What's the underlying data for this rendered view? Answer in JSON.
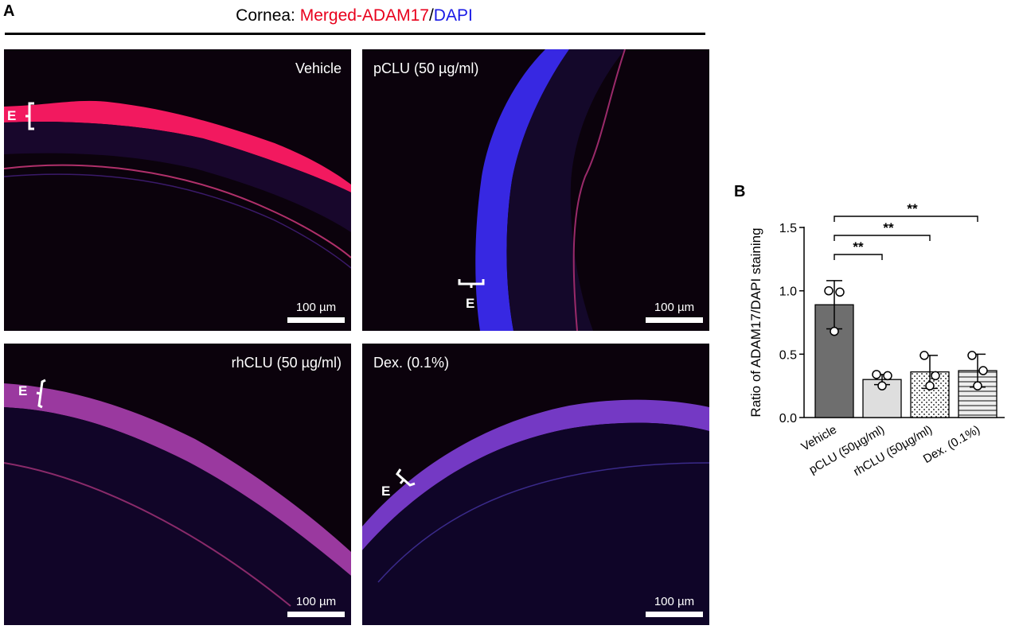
{
  "panel_a": {
    "letter": "A",
    "title_prefix": "Cornea: ",
    "title_red": "Merged-ADAM17",
    "title_sep": "/",
    "title_blue": "DAPI",
    "colors": {
      "red": "#e8001c",
      "blue": "#1a1ae6"
    },
    "images": [
      {
        "condition": "Vehicle",
        "scale_bar": "100 µm",
        "epithelium_label": "E"
      },
      {
        "condition": "pCLU (50 µg/ml)",
        "scale_bar": "100 µm",
        "epithelium_label": "E"
      },
      {
        "condition": "rhCLU (50 µg/ml)",
        "scale_bar": "100 µm",
        "epithelium_label": "E"
      },
      {
        "condition": "Dex. (0.1%)",
        "scale_bar": "100 µm",
        "epithelium_label": "E"
      }
    ]
  },
  "panel_b": {
    "letter": "B",
    "chart_data": {
      "type": "bar",
      "categories": [
        "Vehicle",
        "pCLU (50µg/ml)",
        "rhCLU (50µg/ml)",
        "Dex. (0.1%)"
      ],
      "values": [
        0.89,
        0.3,
        0.36,
        0.37
      ],
      "errors": [
        0.19,
        0.04,
        0.13,
        0.13
      ],
      "points": [
        [
          1.0,
          0.99,
          0.68
        ],
        [
          0.34,
          0.33,
          0.25
        ],
        [
          0.49,
          0.33,
          0.25
        ],
        [
          0.49,
          0.37,
          0.25
        ]
      ],
      "fills": [
        "#6e6e6e",
        "#dedede",
        "dots",
        "hlines"
      ],
      "ylabel": "Ratio of ADAM17/DAPI staining",
      "ylim": [
        0,
        1.5
      ],
      "yticks": [
        0.0,
        0.5,
        1.0,
        1.5
      ],
      "ytick_labels": [
        "0.0",
        "0.5",
        "1.0",
        "1.5"
      ],
      "significance": [
        {
          "from": 0,
          "to": 1,
          "label": "**"
        },
        {
          "from": 0,
          "to": 2,
          "label": "**"
        },
        {
          "from": 0,
          "to": 3,
          "label": "**"
        }
      ]
    }
  }
}
